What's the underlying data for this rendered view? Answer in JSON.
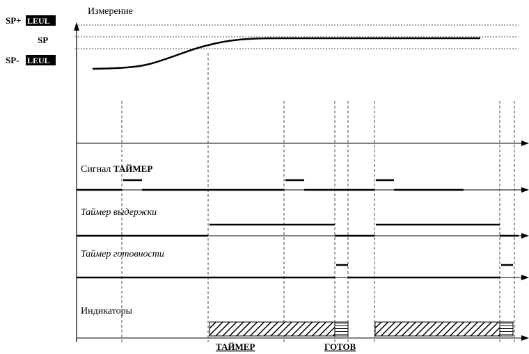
{
  "labels": {
    "measurement": "Измерение",
    "sp_plus_prefix": "SP+",
    "sp_plus_box": "LEUL",
    "sp": "SP",
    "sp_minus_prefix": "SP-",
    "sp_minus_box": "LEUL",
    "timer_signal_prefix": "Сигнал ",
    "timer_signal_bold": "ТАЙМЕР",
    "hold_timer": "Таймер выдержки",
    "ready_timer": "Таймер готовности",
    "indicators": "Индикаторы",
    "timer_indicator": "ТАЙМЕР",
    "ready_indicator": "ГОТОВ"
  }
}
